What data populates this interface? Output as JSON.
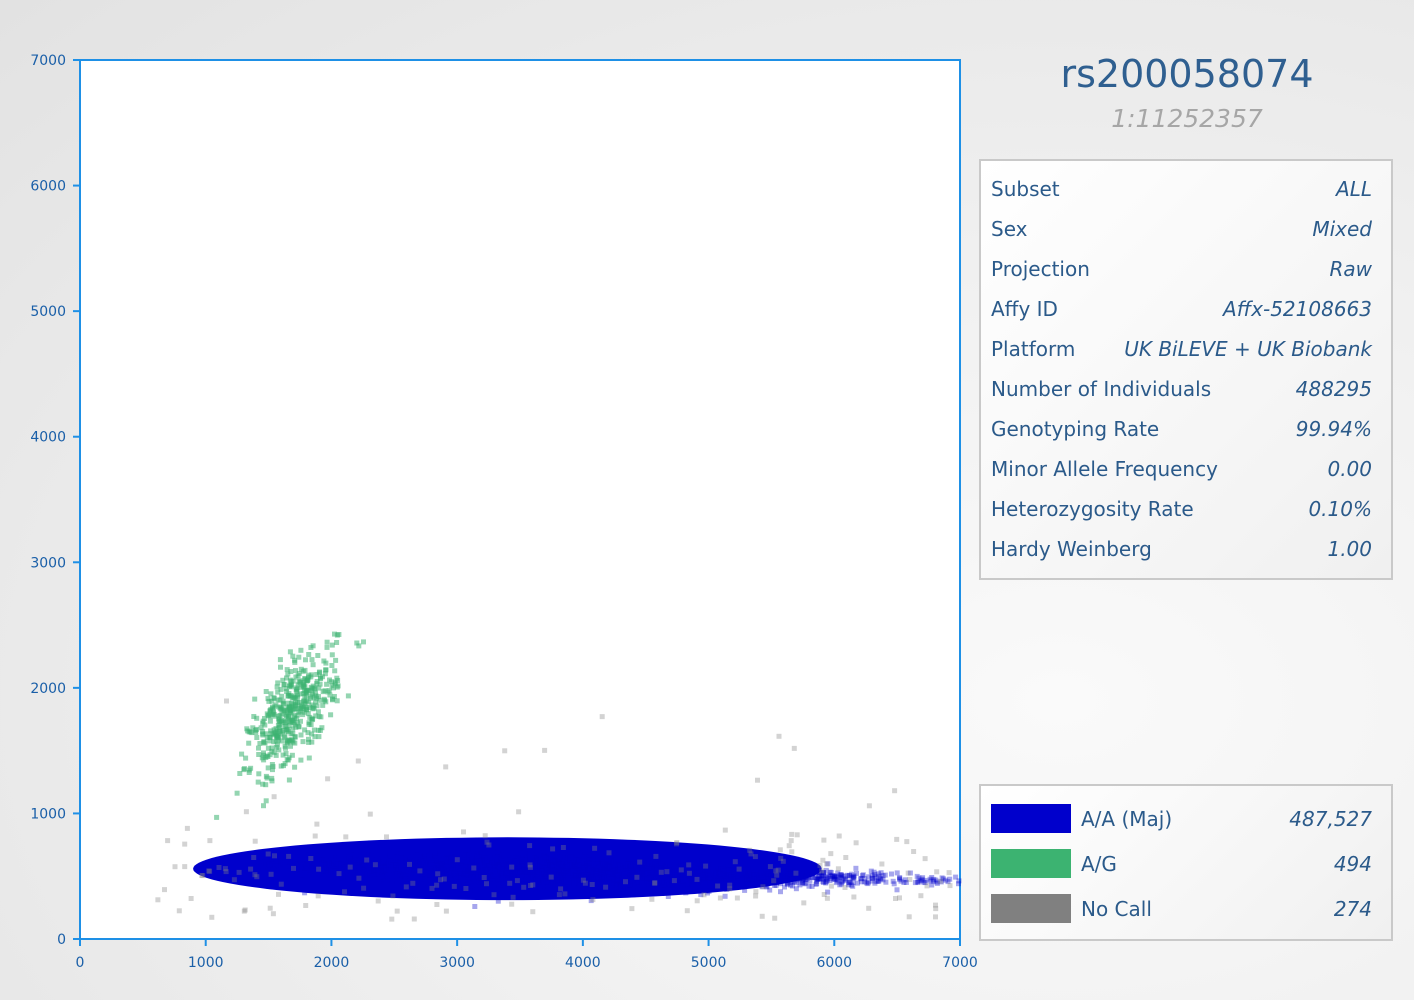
{
  "chart_data": {
    "type": "scatter",
    "xlim": [
      0,
      7000
    ],
    "ylim": [
      0,
      7000
    ],
    "x_ticks": [
      "0",
      "1000",
      "2000",
      "3000",
      "4000",
      "5000",
      "6000",
      "7000"
    ],
    "y_ticks": [
      "0",
      "1000",
      "2000",
      "3000",
      "4000",
      "5000",
      "6000",
      "7000"
    ],
    "grid": false,
    "series": [
      {
        "name": "A/A (Maj)",
        "color": "#0000cc",
        "count": "487,527",
        "center": [
          3800,
          540
        ],
        "spread": [
          1300,
          80
        ],
        "extent_x": [
          1400,
          7000
        ]
      },
      {
        "name": "A/G",
        "color": "#3cb371",
        "count": "494",
        "center": [
          1700,
          1800
        ],
        "spread": [
          170,
          270
        ],
        "extent_x": [
          1000,
          2400
        ]
      },
      {
        "name": "No Call",
        "color": "#808080",
        "count": "274",
        "center": [
          3800,
          700
        ],
        "spread": [
          1800,
          300
        ],
        "extent_x": [
          600,
          7000
        ]
      }
    ]
  },
  "header": {
    "snp_id": "rs200058074",
    "position": "1:11252357"
  },
  "info": {
    "rows": [
      {
        "label": "Subset",
        "value": "ALL"
      },
      {
        "label": "Sex",
        "value": "Mixed"
      },
      {
        "label": "Projection",
        "value": "Raw"
      },
      {
        "label": "Affy ID",
        "value": "Affx-52108663"
      },
      {
        "label": "Platform",
        "value": "UK BiLEVE + UK Biobank"
      },
      {
        "label": "Number of Individuals",
        "value": "488295"
      },
      {
        "label": "Genotyping Rate",
        "value": "99.94%"
      },
      {
        "label": "Minor Allele Frequency",
        "value": "0.00"
      },
      {
        "label": "Heterozygosity Rate",
        "value": "0.10%"
      },
      {
        "label": "Hardy Weinberg",
        "value": "1.00"
      }
    ]
  },
  "legend": {
    "items": [
      {
        "label": "A/A (Maj)",
        "count": "487,527",
        "color": "#0000cc"
      },
      {
        "label": "A/G",
        "count": "494",
        "color": "#3cb371"
      },
      {
        "label": "No Call",
        "count": "274",
        "color": "#808080"
      }
    ]
  }
}
